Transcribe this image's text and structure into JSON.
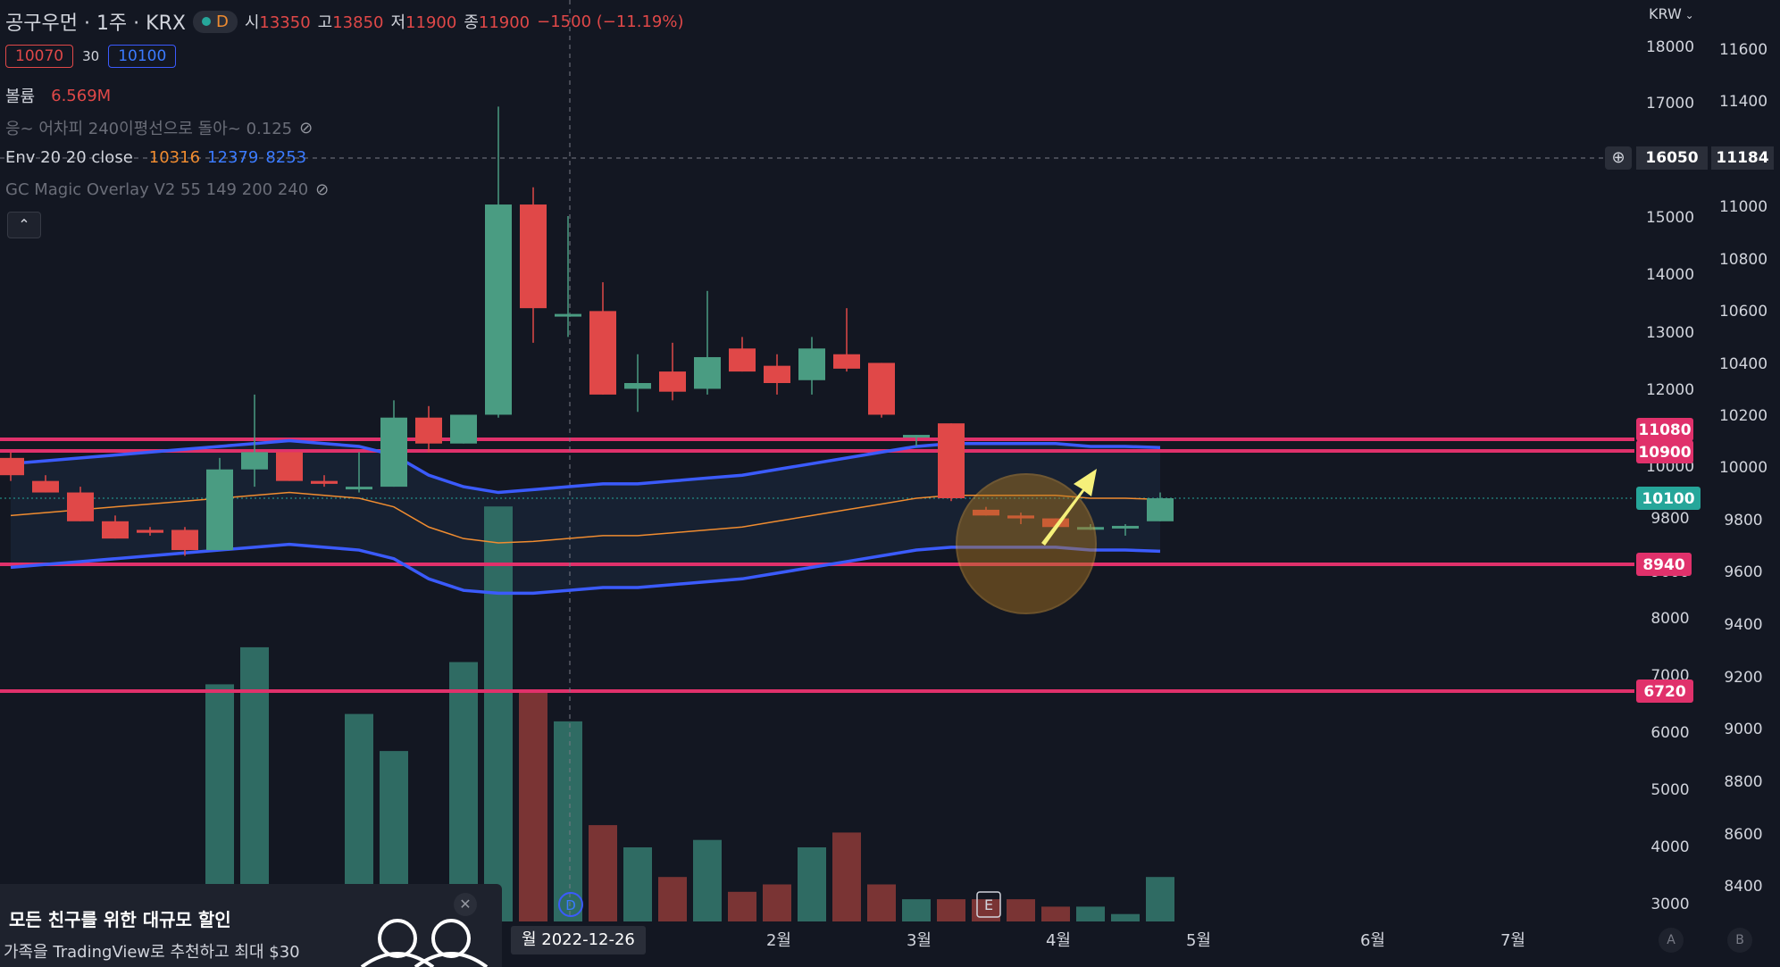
{
  "header": {
    "symbol": "공구우먼 · 1주 · KRX",
    "interval_badge": "D",
    "open_label": "시",
    "open": "13350",
    "high_label": "고",
    "high": "13850",
    "low_label": "저",
    "low": "11900",
    "close_label": "종",
    "close": "11900",
    "change": "−1500 (−11.19%)",
    "sell_price": "10070",
    "spread": "30",
    "buy_price": "10100",
    "currency": "KRW"
  },
  "indicators": {
    "volume_label": "볼륨",
    "volume_value": "6.569M",
    "ma_line": "응~ 어차피 240이평선으로 돌아~ 0.125",
    "env_label": "Env 20 20 close",
    "env_mid": "10316",
    "env_upper": "12379",
    "env_lower": "8253",
    "magic_overlay": "GC Magic Overlay V2 55 149 200 240",
    "collapse_icon": "chevron-up-icon"
  },
  "axis": {
    "left_ticks": [
      "18000",
      "17000",
      "15000",
      "14000",
      "13000",
      "12000",
      "10000",
      "9800",
      "9600",
      "8000",
      "7000",
      "6000",
      "5000",
      "4000",
      "3000"
    ],
    "right_ticks": [
      "11600",
      "11400",
      "11000",
      "10800",
      "10600",
      "10400",
      "10200",
      "10000",
      "9800",
      "9600",
      "9400",
      "9200",
      "9000",
      "8800",
      "8600",
      "8400"
    ],
    "crosshair_left": "16050",
    "crosshair_right": "11184",
    "time_labels": [
      "2월",
      "3월",
      "4월",
      "5월",
      "6월",
      "7월"
    ],
    "crosshair_date": "월 2022-12-26",
    "event_d": "D",
    "event_e": "E",
    "auto_btn": "A",
    "log_btn": "B"
  },
  "levels": [
    {
      "label": "11080",
      "color": "#e0316b"
    },
    {
      "label": "10900",
      "color": "#e0316b"
    },
    {
      "label": "10100",
      "color": "#26a69a"
    },
    {
      "label": "8940",
      "color": "#e0316b"
    },
    {
      "label": "6720",
      "color": "#e0316b"
    }
  ],
  "promo": {
    "title": "모든 친구를 위한 대규모 할인",
    "body": "가족을 TradingView로 추천하고 최대 $30"
  },
  "colors": {
    "bg": "#131722",
    "up": "#4a9c82",
    "down": "#e04848",
    "envelope": "#3b5bfd",
    "mid": "#f08c30",
    "level": "#e0316b",
    "arrow": "#f5f07a"
  },
  "chart_data": {
    "type": "candlestick",
    "y_scale_label_left": "price (upper pane scale)",
    "candles": [
      {
        "o": 10800,
        "h": 10900,
        "l": 10400,
        "c": 10500
      },
      {
        "o": 10400,
        "h": 10500,
        "l": 10200,
        "c": 10200
      },
      {
        "o": 10200,
        "h": 10300,
        "l": 9700,
        "c": 9700
      },
      {
        "o": 9700,
        "h": 9800,
        "l": 9400,
        "c": 9400
      },
      {
        "o": 9550,
        "h": 9600,
        "l": 9450,
        "c": 9500
      },
      {
        "o": 9550,
        "h": 9600,
        "l": 9100,
        "c": 9200
      },
      {
        "o": 9200,
        "h": 10800,
        "l": 9200,
        "c": 10600
      },
      {
        "o": 10600,
        "h": 11900,
        "l": 10300,
        "c": 10900
      },
      {
        "o": 10900,
        "h": 10900,
        "l": 10400,
        "c": 10400
      },
      {
        "o": 10400,
        "h": 10500,
        "l": 10300,
        "c": 10350
      },
      {
        "o": 10300,
        "h": 10900,
        "l": 10200,
        "c": 10300
      },
      {
        "o": 10300,
        "h": 11800,
        "l": 10300,
        "c": 11500
      },
      {
        "o": 11500,
        "h": 11700,
        "l": 10900,
        "c": 11050
      },
      {
        "o": 11050,
        "h": 11550,
        "l": 11050,
        "c": 11550
      },
      {
        "o": 11550,
        "h": 16900,
        "l": 11500,
        "c": 15200
      },
      {
        "o": 15200,
        "h": 15500,
        "l": 12800,
        "c": 13400
      },
      {
        "o": 13300,
        "h": 15000,
        "l": 12900,
        "c": 13300
      },
      {
        "o": 13350,
        "h": 13850,
        "l": 11900,
        "c": 11900
      },
      {
        "o": 12000,
        "h": 12600,
        "l": 11600,
        "c": 12100
      },
      {
        "o": 12300,
        "h": 12800,
        "l": 11800,
        "c": 11950
      },
      {
        "o": 12000,
        "h": 13700,
        "l": 11900,
        "c": 12550
      },
      {
        "o": 12700,
        "h": 12900,
        "l": 12300,
        "c": 12300
      },
      {
        "o": 12400,
        "h": 12600,
        "l": 11900,
        "c": 12100
      },
      {
        "o": 12150,
        "h": 12900,
        "l": 11900,
        "c": 12700
      },
      {
        "o": 12600,
        "h": 13400,
        "l": 12300,
        "c": 12350
      },
      {
        "o": 12450,
        "h": 12450,
        "l": 11500,
        "c": 11550
      },
      {
        "o": 11200,
        "h": 11200,
        "l": 11000,
        "c": 11200
      },
      {
        "o": 11400,
        "h": 11400,
        "l": 10050,
        "c": 10100
      },
      {
        "o": 9900,
        "h": 9950,
        "l": 9800,
        "c": 9800
      },
      {
        "o": 9800,
        "h": 9850,
        "l": 9650,
        "c": 9750
      },
      {
        "o": 9750,
        "h": 9750,
        "l": 9600,
        "c": 9600
      },
      {
        "o": 9600,
        "h": 9650,
        "l": 9550,
        "c": 9600
      },
      {
        "o": 9600,
        "h": 9650,
        "l": 9450,
        "c": 9620
      },
      {
        "o": 9700,
        "h": 10200,
        "l": 9700,
        "c": 10100
      }
    ],
    "volume": [
      0,
      0,
      0,
      0,
      0,
      0,
      3200,
      3700,
      0,
      0,
      2800,
      2300,
      0,
      3500,
      5600,
      3100,
      2700,
      1300,
      1000,
      600,
      1100,
      400,
      500,
      1000,
      1200,
      500,
      300,
      300,
      300,
      300,
      200,
      200,
      100,
      600
    ]
  }
}
